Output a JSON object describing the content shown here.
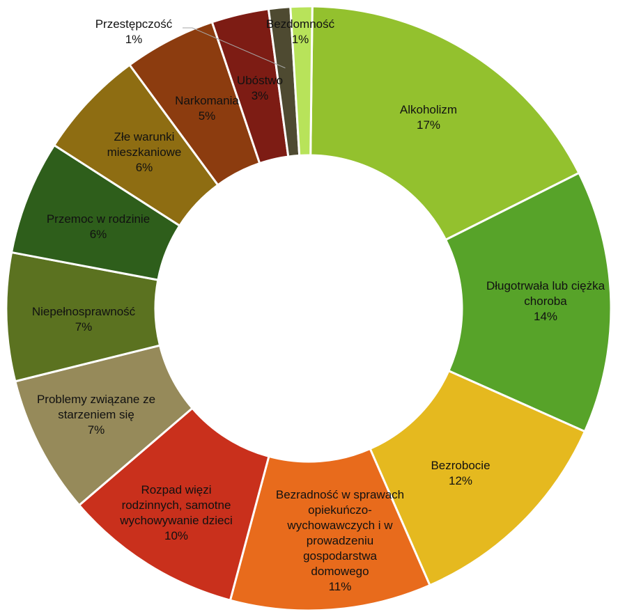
{
  "chart_data": {
    "type": "pie",
    "variant": "donut",
    "legend": "none",
    "slices": [
      {
        "name": "Alkoholizm",
        "label_lines": [
          "Alkoholizm"
        ],
        "value": 17,
        "label": "17%",
        "color": "#93c12e"
      },
      {
        "name": "Długotrwała lub ciężka choroba",
        "label_lines": [
          "Długotrwała lub ciężka",
          "choroba"
        ],
        "value": 14,
        "label": "14%",
        "color": "#57a329"
      },
      {
        "name": "Bezrobocie",
        "label_lines": [
          "Bezrobocie"
        ],
        "value": 12,
        "label": "12%",
        "color": "#e5b91f"
      },
      {
        "name": "Bezradność w sprawach opiekuńczo-wychowawczych i w prowadzeniu gospodarstwa domowego",
        "label_lines": [
          "Bezradność w sprawach",
          "opiekuńczo-",
          "wychowawczych i w",
          "prowadzeniu",
          "gospodarstwa",
          "domowego"
        ],
        "value": 11,
        "label": "11%",
        "color": "#e86b1c"
      },
      {
        "name": "Rozpad więzi rodzinnych, samotne wychowywanie dzieci",
        "label_lines": [
          "Rozpad więzi",
          "rodzinnych, samotne",
          "wychowywanie dzieci"
        ],
        "value": 10,
        "label": "10%",
        "color": "#c9301c"
      },
      {
        "name": "Problemy związane ze starzeniem się",
        "label_lines": [
          "Problemy związane ze",
          "starzeniem się"
        ],
        "value": 7,
        "label": "7%",
        "color": "#968a5a"
      },
      {
        "name": "Niepełnosprawność",
        "label_lines": [
          "Niepełnosprawność"
        ],
        "value": 7,
        "label": "7%",
        "color": "#5b7220"
      },
      {
        "name": "Przemoc w rodzinie",
        "label_lines": [
          "Przemoc w rodzinie"
        ],
        "value": 6,
        "label": "6%",
        "color": "#2e5e1b"
      },
      {
        "name": "Złe warunki mieszkaniowe",
        "label_lines": [
          "Złe warunki",
          "mieszkaniowe"
        ],
        "value": 6,
        "label": "6%",
        "color": "#8e6d12"
      },
      {
        "name": "Narkomania",
        "label_lines": [
          "Narkomania"
        ],
        "value": 5,
        "label": "5%",
        "color": "#8c3c0f"
      },
      {
        "name": "Ubóstwo",
        "label_lines": [
          "Ubóstwo"
        ],
        "value": 3,
        "label": "3%",
        "color": "#7d1c14"
      },
      {
        "name": "Przestępczość",
        "label_lines": [
          "Przestępczość"
        ],
        "value": 1,
        "label": "1%",
        "color": "#4e4a31"
      },
      {
        "name": "Bezdomność",
        "label_lines": [
          "Bezdomność"
        ],
        "value": 1,
        "label": "1%",
        "color": "#b8e35a"
      }
    ]
  }
}
